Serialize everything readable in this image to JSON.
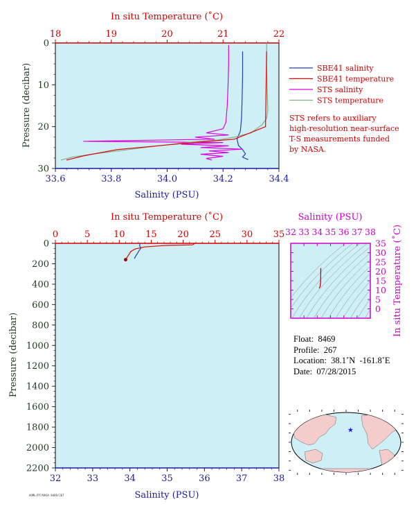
{
  "colors": {
    "plot_bg": "#cdeff5",
    "salinity_axis": "#1a1aa0",
    "temperature_axis": "#cc0000",
    "pressure_axis": "#1f3a1f",
    "sbe_salinity": "#1f3fbf",
    "sbe_temperature": "#e00000",
    "sts_salinity": "#e000e0",
    "sts_temperature": "#88aa88",
    "ts_axis": "#cc00cc"
  },
  "chart_data": [
    {
      "type": "line",
      "title": "",
      "top_axis_label": "In situ Temperature (˚C)",
      "bottom_axis_label": "Salinity (PSU)",
      "left_axis_label": "Pressure (decibar)",
      "salinity_range": [
        33.6,
        34.4
      ],
      "temperature_range": [
        18,
        22
      ],
      "pressure_range": [
        0,
        30
      ],
      "salinity_ticks": [
        "33.6",
        "33.8",
        "34.0",
        "34.2",
        "34.4"
      ],
      "temperature_ticks": [
        "18",
        "19",
        "20",
        "21",
        "22"
      ],
      "pressure_ticks": [
        "0",
        "10",
        "20",
        "30"
      ],
      "legend": [
        {
          "label": "SBE41 salinity",
          "color": "#1f3fbf"
        },
        {
          "label": "SBE41 temperature",
          "color": "#e00000"
        },
        {
          "label": "STS salinity",
          "color": "#e000e0"
        },
        {
          "label": "STS temperature",
          "color": "#88aa88"
        }
      ],
      "note_lines": [
        "STS refers to auxiliary",
        "high-resolution near-surface",
        "T-S measurements funded",
        "by NASA."
      ],
      "series": [
        {
          "name": "SBE41 salinity",
          "axis": "salinity",
          "points": [
            [
              34.27,
              2
            ],
            [
              34.27,
              8
            ],
            [
              34.268,
              14
            ],
            [
              34.266,
              18
            ],
            [
              34.262,
              21
            ],
            [
              34.25,
              23
            ],
            [
              34.255,
              24.5
            ],
            [
              34.27,
              25.5
            ],
            [
              34.28,
              26.5
            ],
            [
              34.27,
              27.3
            ],
            [
              34.29,
              27.9
            ]
          ]
        },
        {
          "name": "STS salinity",
          "axis": "salinity",
          "points": [
            [
              34.22,
              0.5
            ],
            [
              34.22,
              5
            ],
            [
              34.218,
              10
            ],
            [
              34.215,
              15
            ],
            [
              34.21,
              19
            ],
            [
              34.2,
              20.5
            ],
            [
              34.14,
              21.5
            ],
            [
              34.22,
              22
            ],
            [
              34.1,
              22.5
            ],
            [
              34.17,
              23
            ],
            [
              33.7,
              23.5
            ],
            [
              34.2,
              23.8
            ],
            [
              34.05,
              24.2
            ],
            [
              34.22,
              24.6
            ],
            [
              34.12,
              25
            ],
            [
              34.27,
              25.4
            ],
            [
              34.15,
              25.8
            ],
            [
              34.22,
              26.2
            ],
            [
              34.12,
              26.6
            ],
            [
              34.2,
              27.1
            ],
            [
              34.14,
              27.6
            ],
            [
              34.16,
              28
            ]
          ]
        },
        {
          "name": "STS temperature",
          "axis": "temperature",
          "points": [
            [
              21.78,
              0
            ],
            [
              21.78,
              5
            ],
            [
              21.79,
              10
            ],
            [
              21.8,
              16
            ],
            [
              21.78,
              18
            ],
            [
              21.7,
              19.5
            ],
            [
              21.5,
              21.5
            ],
            [
              21.2,
              22.5
            ],
            [
              20.9,
              23.2
            ],
            [
              20.5,
              23.6
            ],
            [
              19.9,
              24.5
            ],
            [
              19.3,
              25.5
            ],
            [
              18.7,
              26.5
            ],
            [
              18.3,
              27.3
            ],
            [
              18.1,
              28
            ]
          ]
        },
        {
          "name": "SBE41 temperature",
          "axis": "temperature",
          "points": [
            [
              21.78,
              2
            ],
            [
              21.76,
              20
            ],
            [
              21.2,
              23
            ],
            [
              20.3,
              24
            ],
            [
              19.1,
              25.5
            ],
            [
              18.5,
              27
            ],
            [
              18.2,
              28
            ]
          ]
        }
      ]
    },
    {
      "type": "line",
      "title": "",
      "top_axis_label": "In situ Temperature (˚C)",
      "bottom_axis_label": "Salinity (PSU)",
      "left_axis_label": "Pressure (decibar)",
      "salinity_range": [
        32,
        38
      ],
      "temperature_range": [
        0,
        35
      ],
      "pressure_range": [
        0,
        2200
      ],
      "salinity_ticks": [
        "32",
        "33",
        "34",
        "35",
        "36",
        "37",
        "38"
      ],
      "temperature_ticks": [
        "0",
        "5",
        "10",
        "15",
        "20",
        "25",
        "30",
        "35"
      ],
      "pressure_ticks": [
        "0",
        "200",
        "400",
        "600",
        "800",
        "1000",
        "1200",
        "1400",
        "1600",
        "1800",
        "2000",
        "2200"
      ],
      "series": [
        {
          "name": "SBE41 salinity",
          "axis": "salinity",
          "points": [
            [
              34.27,
              2
            ],
            [
              34.26,
              25
            ],
            [
              34.3,
              45
            ],
            [
              34.25,
              70
            ],
            [
              34.2,
              100
            ],
            [
              34.15,
              130
            ],
            [
              34.12,
              150
            ]
          ]
        },
        {
          "name": "SBE41 temperature",
          "axis": "temperature",
          "points": [
            [
              21.8,
              2
            ],
            [
              21.5,
              15
            ],
            [
              17,
              22
            ],
            [
              14,
              35
            ],
            [
              12.5,
              55
            ],
            [
              11.8,
              80
            ],
            [
              11.5,
              110
            ],
            [
              11.2,
              140
            ],
            [
              11,
              160
            ]
          ]
        }
      ]
    },
    {
      "type": "scatter",
      "title": "",
      "top_axis_label": "Salinity (PSU)",
      "right_axis_label": "In situ Temperature (˚C)",
      "salinity_range": [
        32,
        38
      ],
      "temperature_range": [
        -5,
        35
      ],
      "salinity_ticks": [
        "32",
        "33",
        "34",
        "35",
        "36",
        "37",
        "38"
      ],
      "temperature_ticks": [
        "0",
        "5",
        "10",
        "15",
        "20",
        "25",
        "30",
        "35"
      ],
      "series": [
        {
          "name": "T-S profile",
          "points": [
            [
              34.27,
              21.8
            ],
            [
              34.26,
              17
            ],
            [
              34.25,
              14
            ],
            [
              34.22,
              12
            ],
            [
              34.15,
              11
            ]
          ]
        }
      ]
    }
  ],
  "info": {
    "float": "Float:  8469",
    "profile": "Profile:  267",
    "location": "Location:  38.1˚N  -161.8˚E",
    "date": "Date:  07/28/2015"
  },
  "map": {
    "marker_lon": -161.8,
    "marker_lat": 38.1
  },
  "stamp": "AOML/PF/NASA 8469/267"
}
